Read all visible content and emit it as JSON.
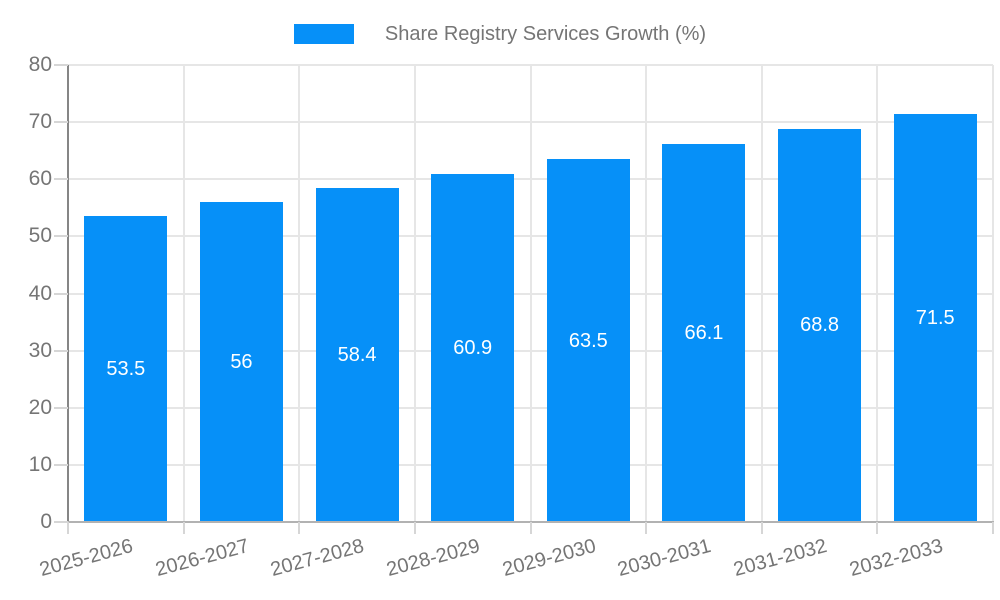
{
  "chart_data": {
    "type": "bar",
    "title": "",
    "legend_label": "Share Registry Services Growth (%)",
    "legend_position": "top",
    "categories": [
      "2025-2026",
      "2026-2027",
      "2027-2028",
      "2028-2029",
      "2029-2030",
      "2030-2031",
      "2031-2032",
      "2032-2033"
    ],
    "values": [
      53.5,
      56,
      58.4,
      60.9,
      63.5,
      66.1,
      68.8,
      71.5
    ],
    "value_labels": [
      "53.5",
      "56",
      "58.4",
      "60.9",
      "63.5",
      "66.1",
      "68.8",
      "71.5"
    ],
    "xlabel": "",
    "ylabel": "",
    "ylim": [
      0,
      80
    ],
    "yticks": [
      0,
      10,
      20,
      30,
      40,
      50,
      60,
      70,
      80
    ],
    "ytick_labels": [
      "0",
      "10",
      "20",
      "30",
      "40",
      "50",
      "60",
      "70",
      "80"
    ],
    "grid": true,
    "colors": {
      "bar": "#0690f8",
      "bar_value_text": "#ffffff",
      "axis_text": "#757575",
      "gridline": "#e6e6e6",
      "tick_mark": "#d6d6d6",
      "y_axis_line": "#868686",
      "x_axis_line": "#b2b2b2",
      "background": "#ffffff"
    }
  }
}
